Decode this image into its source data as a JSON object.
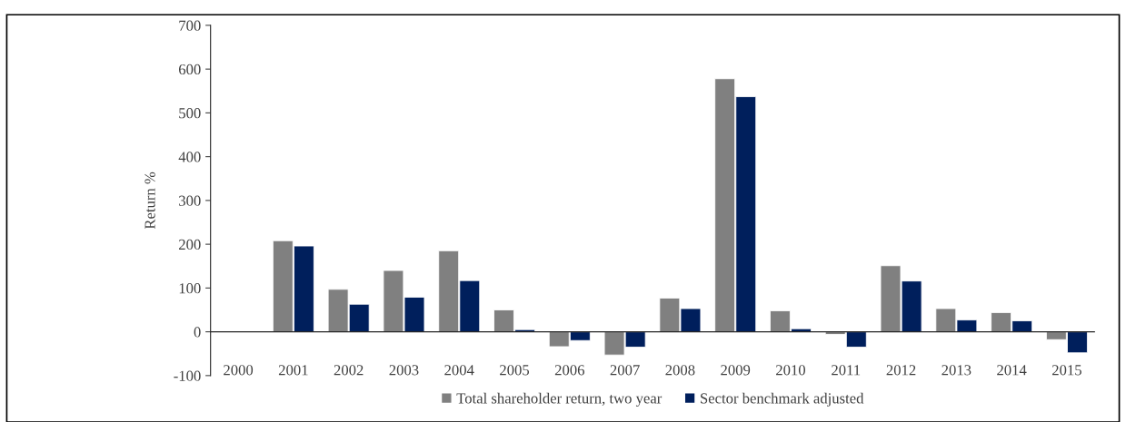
{
  "chart_data": {
    "type": "bar",
    "ylabel": "Return %",
    "categories": [
      "2000",
      "2001",
      "2002",
      "2003",
      "2004",
      "2005",
      "2006",
      "2007",
      "2008",
      "2009",
      "2010",
      "2011",
      "2012",
      "2013",
      "2014",
      "2015"
    ],
    "series": [
      {
        "name": "Total shareholder return, two year",
        "color": "#808080",
        "values": [
          null,
          208,
          97,
          140,
          185,
          50,
          -34,
          -53,
          77,
          578,
          48,
          -6,
          151,
          53,
          44,
          -18
        ]
      },
      {
        "name": "Sector benchmark adjusted",
        "color": "#001f5c",
        "values": [
          null,
          196,
          63,
          79,
          117,
          5,
          -20,
          -35,
          53,
          537,
          7,
          -35,
          116,
          27,
          25,
          -48
        ]
      }
    ],
    "ylim": [
      -100,
      700
    ],
    "yticks": [
      -100,
      0,
      100,
      200,
      300,
      400,
      500,
      600,
      700
    ],
    "grid": false,
    "legend": "bottom"
  }
}
